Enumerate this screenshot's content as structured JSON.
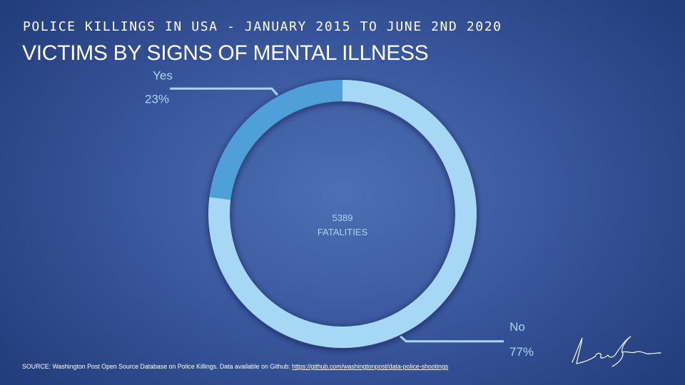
{
  "header": {
    "supertitle": "POLICE KILLINGS IN USA - JANUARY 2015 TO JUNE 2ND 2020",
    "title": "VICTIMS BY SIGNS OF MENTAL ILLNESS"
  },
  "chart_data": {
    "type": "pie",
    "style": "donut",
    "title": "VICTIMS BY SIGNS OF MENTAL ILLNESS",
    "center_label": {
      "value": "5389",
      "text": "FATALITIES"
    },
    "slices": [
      {
        "label": "Yes",
        "percent_label": "23%",
        "value": 23,
        "color": "#4fa0d8"
      },
      {
        "label": "No",
        "percent_label": "77%",
        "value": 77,
        "color": "#a6d8f5"
      }
    ],
    "legend": "none"
  },
  "colors": {
    "label_text": "#a6d8f5",
    "title_text": "#ffffff"
  },
  "footer": {
    "source_text": "SOURCE: Washington Post Open Source Database on Police Killings. Data available on Github: ",
    "source_link": "https://github.com/washingtonpost/data-police-shootings"
  }
}
